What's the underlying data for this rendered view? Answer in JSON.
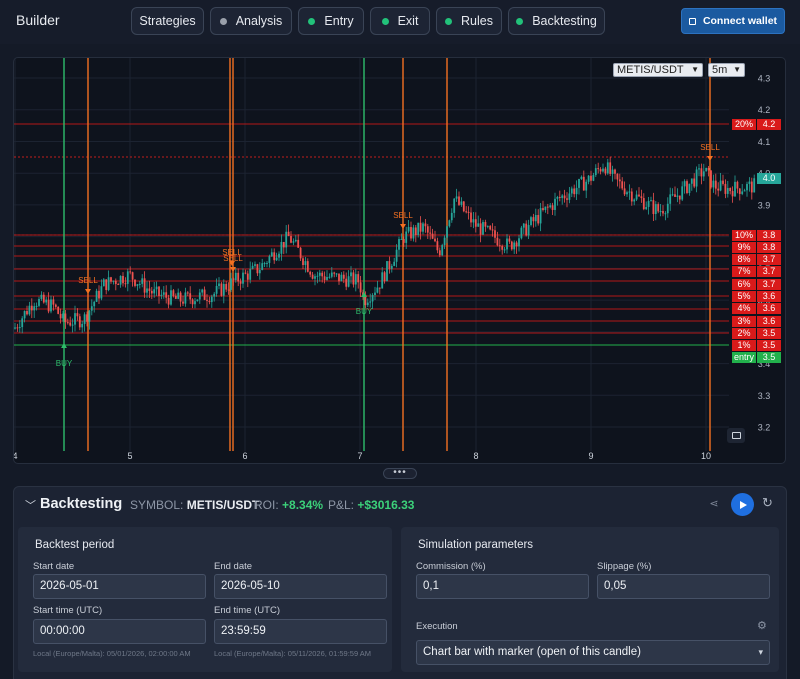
{
  "header": {
    "title": "Builder",
    "nav": [
      {
        "label": "Strategies",
        "dot": null
      },
      {
        "label": "Analysis",
        "dot": "#9aa0aa"
      },
      {
        "label": "Entry",
        "dot": "#22c27a"
      },
      {
        "label": "Exit",
        "dot": "#22c27a"
      },
      {
        "label": "Rules",
        "dot": "#22c27a"
      },
      {
        "label": "Backtesting",
        "dot": "#22c27a"
      }
    ],
    "connect_label": "Connect wallet"
  },
  "chart": {
    "symbol_select": "METIS/USDT",
    "interval_select": "5m",
    "y_ticks": [
      "4.3",
      "4.2",
      "4.1",
      "4.0",
      "3.9",
      "3.8",
      "3.7",
      "3.6",
      "3.5",
      "3.4",
      "3.3",
      "3.2"
    ],
    "x_ticks": [
      "4",
      "5",
      "6",
      "7",
      "8",
      "9",
      "10"
    ],
    "current_price": "4.0",
    "levels": [
      {
        "pct": "20%",
        "price": "4.2",
        "color": "#d91a1a"
      },
      {
        "pct": "10%",
        "price": "3.8",
        "color": "#d91a1a"
      },
      {
        "pct": "9%",
        "price": "3.8",
        "color": "#d91a1a"
      },
      {
        "pct": "8%",
        "price": "3.7",
        "color": "#d91a1a"
      },
      {
        "pct": "7%",
        "price": "3.7",
        "color": "#d91a1a"
      },
      {
        "pct": "6%",
        "price": "3.7",
        "color": "#d91a1a"
      },
      {
        "pct": "5%",
        "price": "3.6",
        "color": "#d91a1a"
      },
      {
        "pct": "4%",
        "price": "3.6",
        "color": "#d91a1a"
      },
      {
        "pct": "3%",
        "price": "3.6",
        "color": "#d91a1a"
      },
      {
        "pct": "2%",
        "price": "3.5",
        "color": "#d91a1a"
      },
      {
        "pct": "1%",
        "price": "3.5",
        "color": "#d91a1a"
      },
      {
        "pct": "entry",
        "price": "3.5",
        "color": "#22b14c"
      }
    ],
    "markers": [
      {
        "label": "BUY",
        "type": "buy"
      },
      {
        "label": "SELL",
        "type": "sell"
      },
      {
        "label": "SELL",
        "type": "sell"
      },
      {
        "label": "SELL",
        "type": "sell"
      },
      {
        "label": "BUY",
        "type": "buy"
      },
      {
        "label": "SELL",
        "type": "sell"
      },
      {
        "label": "SELL",
        "type": "sell"
      }
    ],
    "colors": {
      "up": "#26a69a",
      "down": "#ef5350",
      "buy": "#2ebd6b",
      "sell": "#f37021"
    }
  },
  "backtesting": {
    "title": "Backtesting",
    "symbol_label": "SYMBOL:",
    "symbol": "METIS/USDT",
    "roi_label": "ROI:",
    "roi": "+8.34%",
    "pnl_label": "P&L:",
    "pnl": "+$3016.33",
    "period": {
      "title": "Backtest period",
      "start_date_label": "Start date",
      "start_date": "2026-05-01",
      "end_date_label": "End date",
      "end_date": "2026-05-10",
      "start_time_label": "Start time (UTC)",
      "start_time": "00:00:00",
      "end_time_label": "End time (UTC)",
      "end_time": "23:59:59",
      "start_local": "Local (Europe/Malta): 05/01/2026, 02:00:00 AM",
      "end_local": "Local (Europe/Malta): 05/11/2026, 01:59:59 AM"
    },
    "simulation": {
      "title": "Simulation parameters",
      "commission_label": "Commission (%)",
      "commission": "0,1",
      "slippage_label": "Slippage (%)",
      "slippage": "0,05",
      "execution_label": "Execution",
      "execution": "Chart bar with marker (open of this candle)"
    }
  }
}
